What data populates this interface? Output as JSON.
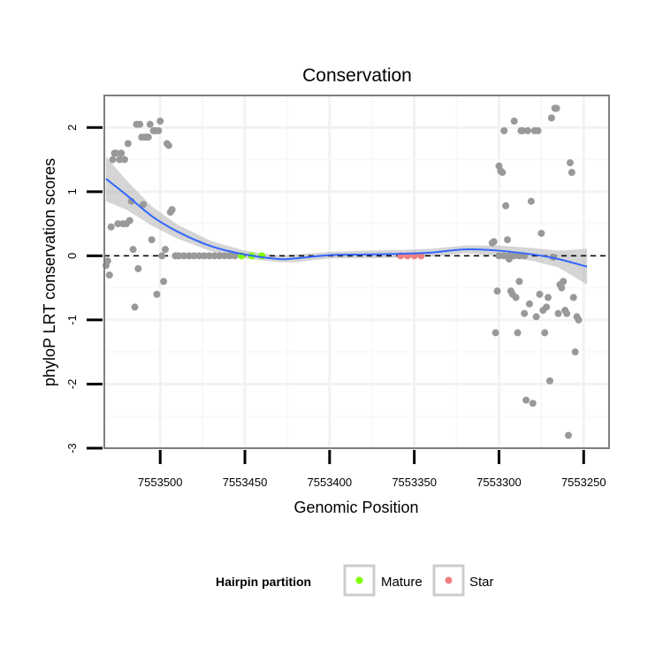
{
  "chart_data": {
    "type": "scatter",
    "title": "Conservation",
    "xlabel": "Genomic Position",
    "ylabel": "phyloP LRT conservation scores",
    "x_reversed": true,
    "xlim": [
      7553533,
      7553235
    ],
    "ylim": [
      -3,
      2.5
    ],
    "x_ticks": [
      {
        "value": 7553500,
        "label": "7553500"
      },
      {
        "value": 7553450,
        "label": "7553450"
      },
      {
        "value": 7553400,
        "label": "7553400"
      },
      {
        "value": 7553350,
        "label": "7553350"
      },
      {
        "value": 7553300,
        "label": "7553300"
      },
      {
        "value": 7553250,
        "label": "7553250"
      }
    ],
    "y_ticks": [
      {
        "value": 2,
        "label": "2"
      },
      {
        "value": 1,
        "label": "1"
      },
      {
        "value": 0,
        "label": "0"
      },
      {
        "value": -1,
        "label": "-1"
      },
      {
        "value": -2,
        "label": "-2"
      },
      {
        "value": -3,
        "label": "-3"
      }
    ],
    "grid": true,
    "reference_line": {
      "y": 0,
      "style": "dashed",
      "color": "#000000"
    },
    "point_color": "#999999",
    "points": [
      [
        7553532,
        -0.15
      ],
      [
        7553531,
        -0.08
      ],
      [
        7553530,
        -0.3
      ],
      [
        7553529,
        0.45
      ],
      [
        7553528,
        1.5
      ],
      [
        7553527,
        1.6
      ],
      [
        7553526,
        1.6
      ],
      [
        7553525,
        0.5
      ],
      [
        7553524,
        1.5
      ],
      [
        7553523,
        1.6
      ],
      [
        7553522,
        0.5
      ],
      [
        7553521,
        1.5
      ],
      [
        7553520,
        0.5
      ],
      [
        7553519,
        1.75
      ],
      [
        7553518,
        0.55
      ],
      [
        7553517,
        0.85
      ],
      [
        7553516,
        0.1
      ],
      [
        7553515,
        -0.8
      ],
      [
        7553514,
        2.05
      ],
      [
        7553513,
        -0.2
      ],
      [
        7553512,
        2.05
      ],
      [
        7553511,
        1.85
      ],
      [
        7553510,
        0.8
      ],
      [
        7553509,
        1.85
      ],
      [
        7553508,
        1.85
      ],
      [
        7553507,
        1.85
      ],
      [
        7553506,
        2.05
      ],
      [
        7553505,
        0.25
      ],
      [
        7553504,
        1.95
      ],
      [
        7553503,
        1.95
      ],
      [
        7553502,
        -0.6
      ],
      [
        7553501,
        1.95
      ],
      [
        7553500,
        2.1
      ],
      [
        7553499,
        0.0
      ],
      [
        7553498,
        -0.4
      ],
      [
        7553497,
        0.1
      ],
      [
        7553496,
        1.75
      ],
      [
        7553495,
        1.72
      ],
      [
        7553494,
        0.68
      ],
      [
        7553493,
        0.72
      ],
      [
        7553491,
        0.0
      ],
      [
        7553489,
        0.0
      ],
      [
        7553486,
        0.0
      ],
      [
        7553483,
        0.0
      ],
      [
        7553480,
        0.0
      ],
      [
        7553477,
        0.0
      ],
      [
        7553474,
        0.0
      ],
      [
        7553471,
        0.0
      ],
      [
        7553468,
        0.0
      ],
      [
        7553465,
        0.0
      ],
      [
        7553462,
        0.0
      ],
      [
        7553459,
        0.0
      ],
      [
        7553456,
        0.0
      ],
      [
        7553300,
        0.0
      ],
      [
        7553297,
        0.0
      ],
      [
        7553294,
        0.0
      ],
      [
        7553291,
        0.0
      ],
      [
        7553288,
        0.0
      ],
      [
        7553285,
        0.0
      ],
      [
        7553304,
        0.2
      ],
      [
        7553303,
        0.22
      ],
      [
        7553302,
        -1.2
      ],
      [
        7553301,
        -0.55
      ],
      [
        7553300,
        1.4
      ],
      [
        7553299,
        1.32
      ],
      [
        7553298,
        1.3
      ],
      [
        7553297,
        1.95
      ],
      [
        7553296,
        0.78
      ],
      [
        7553295,
        0.25
      ],
      [
        7553294,
        -0.05
      ],
      [
        7553293,
        -0.55
      ],
      [
        7553292,
        -0.6
      ],
      [
        7553291,
        2.1
      ],
      [
        7553290,
        -0.65
      ],
      [
        7553289,
        -1.2
      ],
      [
        7553288,
        -0.4
      ],
      [
        7553287,
        1.95
      ],
      [
        7553286,
        1.95
      ],
      [
        7553285,
        -0.9
      ],
      [
        7553284,
        -2.25
      ],
      [
        7553283,
        1.95
      ],
      [
        7553282,
        -0.75
      ],
      [
        7553281,
        0.85
      ],
      [
        7553280,
        -2.3
      ],
      [
        7553279,
        1.95
      ],
      [
        7553278,
        -0.95
      ],
      [
        7553277,
        1.95
      ],
      [
        7553276,
        -0.6
      ],
      [
        7553275,
        0.35
      ],
      [
        7553274,
        -0.85
      ],
      [
        7553273,
        -1.2
      ],
      [
        7553272,
        -0.8
      ],
      [
        7553271,
        -0.65
      ],
      [
        7553270,
        -1.95
      ],
      [
        7553269,
        2.15
      ],
      [
        7553268,
        -0.02
      ],
      [
        7553267,
        2.3
      ],
      [
        7553266,
        2.3
      ],
      [
        7553265,
        -0.9
      ],
      [
        7553264,
        -0.45
      ],
      [
        7553263,
        -0.5
      ],
      [
        7553262,
        -0.4
      ],
      [
        7553261,
        -0.85
      ],
      [
        7553260,
        -0.9
      ],
      [
        7553259,
        -2.8
      ],
      [
        7553258,
        1.45
      ],
      [
        7553257,
        1.3
      ],
      [
        7553256,
        -0.65
      ],
      [
        7553255,
        -1.5
      ],
      [
        7553254,
        -0.95
      ],
      [
        7553253,
        -1.0
      ]
    ],
    "mature_points": [
      [
        7553452,
        0.0
      ],
      [
        7553446,
        0.0
      ],
      [
        7553440,
        0.0
      ]
    ],
    "star_points": [
      [
        7553358,
        0.0
      ],
      [
        7553354,
        0.0
      ],
      [
        7553350,
        0.0
      ],
      [
        7553346,
        0.0
      ]
    ],
    "smooth": {
      "color": "#3366ff",
      "band_color": "#b3b3b3",
      "x": [
        7553532,
        7553520,
        7553505,
        7553490,
        7553470,
        7553450,
        7553430,
        7553420,
        7553400,
        7553380,
        7553360,
        7553340,
        7553320,
        7553300,
        7553280,
        7553265,
        7553248
      ],
      "y": [
        1.2,
        0.95,
        0.62,
        0.38,
        0.15,
        0.02,
        -0.05,
        -0.04,
        0.01,
        0.02,
        0.03,
        0.05,
        0.1,
        0.08,
        0.02,
        -0.05,
        -0.17
      ],
      "lower": [
        0.85,
        0.72,
        0.47,
        0.27,
        0.07,
        -0.04,
        -0.1,
        -0.1,
        -0.04,
        -0.04,
        -0.03,
        -0.01,
        0.04,
        0.0,
        -0.08,
        -0.18,
        -0.45
      ],
      "upper": [
        1.55,
        1.18,
        0.77,
        0.49,
        0.23,
        0.08,
        0.0,
        0.02,
        0.06,
        0.08,
        0.09,
        0.11,
        0.16,
        0.16,
        0.12,
        0.08,
        0.11
      ]
    },
    "legend": {
      "title": "Hairpin partition",
      "position": "bottom",
      "entries": [
        {
          "label": "Mature",
          "color": "#7fff00"
        },
        {
          "label": "Star",
          "color": "#f08080"
        }
      ]
    }
  }
}
